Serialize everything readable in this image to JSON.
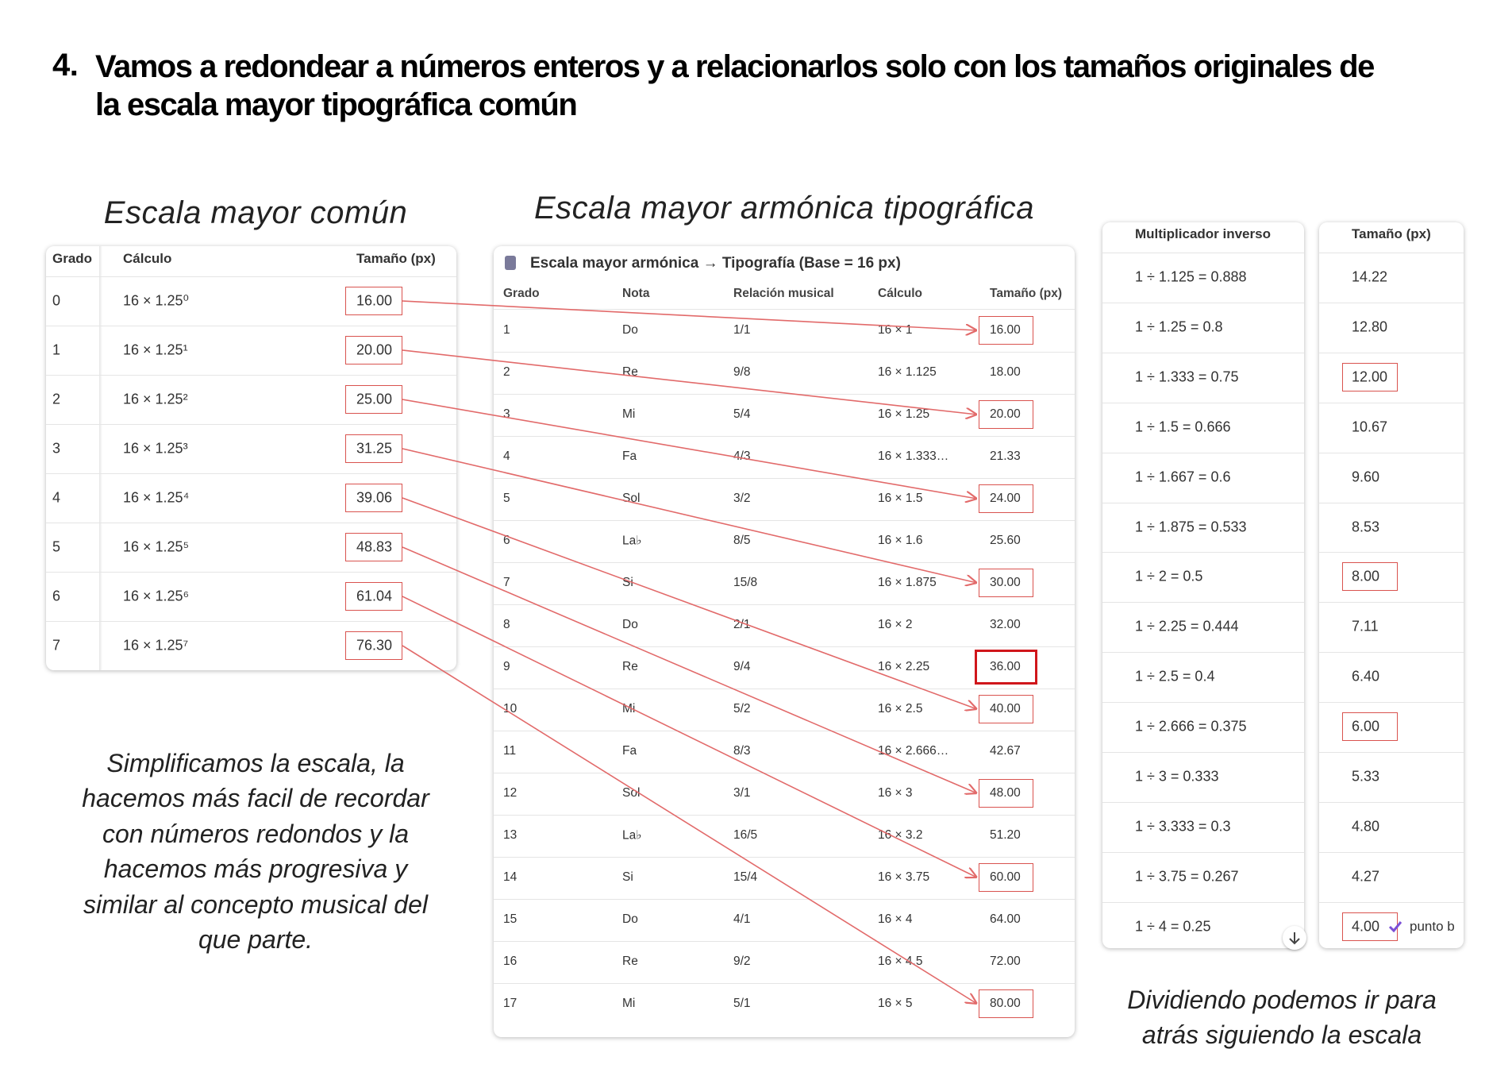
{
  "heading": {
    "number": "4.",
    "title": "Vamos a redondear a números enteros y a relacionarlos solo con los tamaños originales de la escala mayor tipográfica común"
  },
  "common_scale": {
    "caption": "Escala mayor común",
    "headers": [
      "Grado",
      "Cálculo",
      "Tamaño (px)"
    ],
    "rows": [
      [
        "0",
        "16 × 1.25⁰",
        "16.00"
      ],
      [
        "1",
        "16 × 1.25¹",
        "20.00"
      ],
      [
        "2",
        "16 × 1.25²",
        "25.00"
      ],
      [
        "3",
        "16 × 1.25³",
        "31.25"
      ],
      [
        "4",
        "16 × 1.25⁴",
        "39.06"
      ],
      [
        "5",
        "16 × 1.25⁵",
        "48.83"
      ],
      [
        "6",
        "16 × 1.25⁶",
        "61.04"
      ],
      [
        "7",
        "16 × 1.25⁷",
        "76.30"
      ]
    ],
    "note": "Simplificamos la escala, la hacemos más facil de recordar con números redondos y la hacemos más progresiva y similar al concepto musical del que parte."
  },
  "harmonic_scale": {
    "caption": "Escala mayor armónica tipográfica",
    "title": "Escala mayor armónica → Tipografía (Base = 16 px)",
    "headers": [
      "Grado",
      "Nota",
      "Relación musical",
      "Cálculo",
      "Tamaño (px)"
    ],
    "rows": [
      [
        "1",
        "Do",
        "1/1",
        "16 × 1",
        "16.00"
      ],
      [
        "2",
        "Re",
        "9/8",
        "16 × 1.125",
        "18.00"
      ],
      [
        "3",
        "Mi",
        "5/4",
        "16 × 1.25",
        "20.00"
      ],
      [
        "4",
        "Fa",
        "4/3",
        "16 × 1.333…",
        "21.33"
      ],
      [
        "5",
        "Sol",
        "3/2",
        "16 × 1.5",
        "24.00"
      ],
      [
        "6",
        "La♭",
        "8/5",
        "16 × 1.6",
        "25.60"
      ],
      [
        "7",
        "Si",
        "15/8",
        "16 × 1.875",
        "30.00"
      ],
      [
        "8",
        "Do",
        "2/1",
        "16 × 2",
        "32.00"
      ],
      [
        "9",
        "Re",
        "9/4",
        "16 × 2.25",
        "36.00"
      ],
      [
        "10",
        "Mi",
        "5/2",
        "16 × 2.5",
        "40.00"
      ],
      [
        "11",
        "Fa",
        "8/3",
        "16 × 2.666…",
        "42.67"
      ],
      [
        "12",
        "Sol",
        "3/1",
        "16 × 3",
        "48.00"
      ],
      [
        "13",
        "La♭",
        "16/5",
        "16 × 3.2",
        "51.20"
      ],
      [
        "14",
        "Si",
        "15/4",
        "16 × 3.75",
        "60.00"
      ],
      [
        "15",
        "Do",
        "4/1",
        "16 × 4",
        "64.00"
      ],
      [
        "16",
        "Re",
        "9/2",
        "16 × 4.5",
        "72.00"
      ],
      [
        "17",
        "Mi",
        "5/1",
        "16 × 5",
        "80.00"
      ]
    ]
  },
  "inverse_scale": {
    "headers": [
      "Multiplicador inverso",
      "Tamaño (px)"
    ],
    "rows": [
      [
        "1 ÷ 1.125 = 0.888",
        "14.22"
      ],
      [
        "1 ÷ 1.25 = 0.8",
        "12.80"
      ],
      [
        "1 ÷ 1.333 = 0.75",
        "12.00"
      ],
      [
        "1 ÷ 1.5 = 0.666",
        "10.67"
      ],
      [
        "1 ÷ 1.667 = 0.6",
        "9.60"
      ],
      [
        "1 ÷ 1.875 = 0.533",
        "8.53"
      ],
      [
        "1 ÷ 2 = 0.5",
        "8.00"
      ],
      [
        "1 ÷ 2.25 = 0.444",
        "7.11"
      ],
      [
        "1 ÷ 2.5 = 0.4",
        "6.40"
      ],
      [
        "1 ÷ 2.666 = 0.375",
        "6.00"
      ],
      [
        "1 ÷ 3 = 0.333",
        "5.33"
      ],
      [
        "1 ÷ 3.333 = 0.3",
        "4.80"
      ],
      [
        "1 ÷ 3.75 = 0.267",
        "4.27"
      ],
      [
        "1 ÷ 4 = 0.25",
        "4.00"
      ]
    ],
    "last_row_note": "punto b",
    "note": "Dividiendo podemos ir para atrás siguiendo la escala"
  }
}
